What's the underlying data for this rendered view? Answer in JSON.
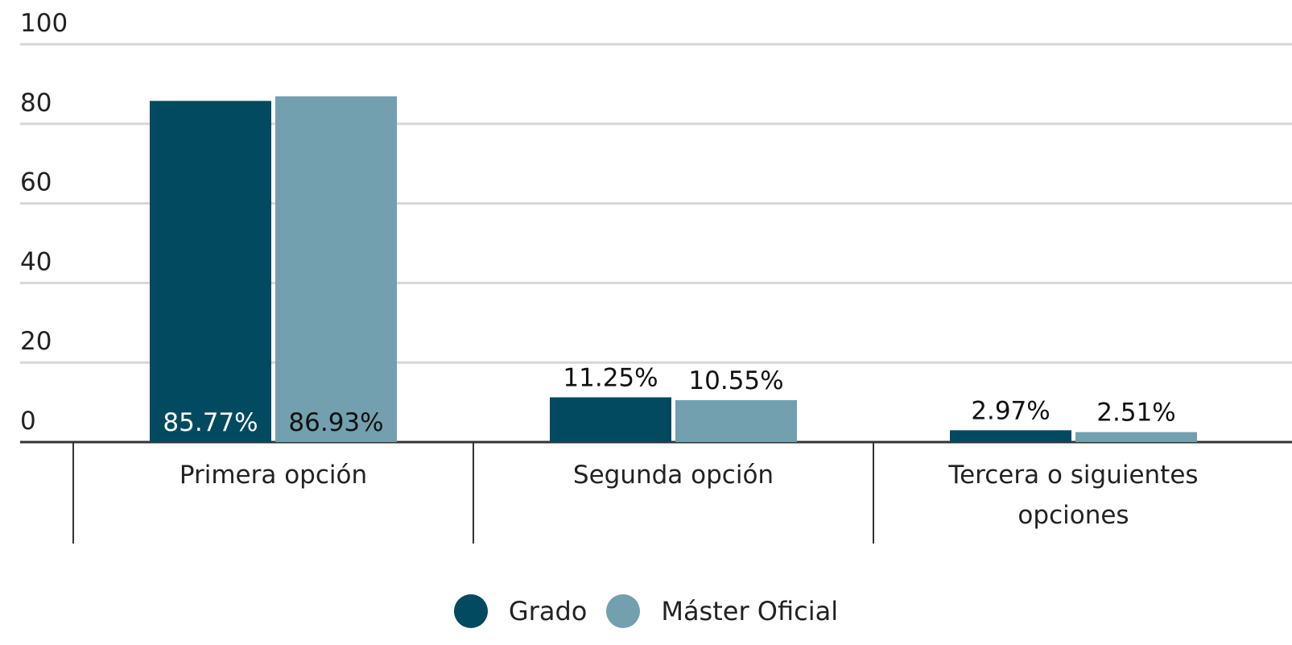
{
  "chart_data": {
    "type": "bar",
    "categories": [
      "Primera opción",
      "Segunda opción",
      "Tercera o siguientes opciones"
    ],
    "series": [
      {
        "name": "Grado",
        "color": "#024a5f",
        "values": [
          85.77,
          11.25,
          2.97
        ],
        "value_labels": [
          "85.77%",
          "11.25%",
          "2.97%"
        ]
      },
      {
        "name": "Máster Oficial",
        "color": "#72a0ae",
        "values": [
          86.93,
          10.55,
          2.51
        ],
        "value_labels": [
          "86.93%",
          "10.55%",
          "2.51%"
        ]
      }
    ],
    "ylim": [
      0,
      100
    ],
    "yticks": [
      0,
      20,
      40,
      60,
      80,
      100
    ],
    "grid": true,
    "legend": "bottom"
  }
}
